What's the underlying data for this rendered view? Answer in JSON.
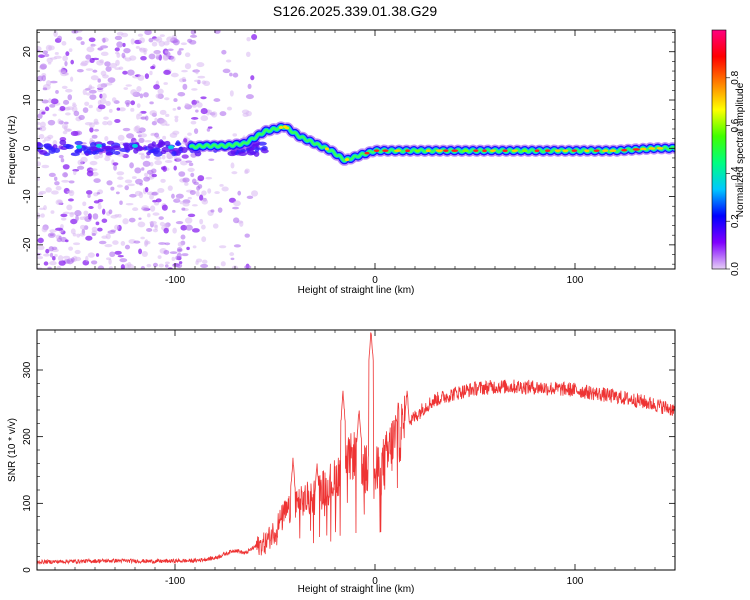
{
  "figure": {
    "title": "S126.2025.339.01.38.G29"
  },
  "chart_data": [
    {
      "type": "heatmap",
      "title": "S126.2025.339.01.38.G29",
      "xlabel": "Height of straight line (km)",
      "ylabel": "Frequency (Hz)",
      "xlim": [
        -169,
        150
      ],
      "ylim": [
        -25,
        24.5
      ],
      "x_ticks": [
        -100,
        0,
        100
      ],
      "x_tick_labels": [
        "-100",
        "0",
        "100"
      ],
      "y_ticks": [
        20,
        10,
        0,
        -10,
        -20
      ],
      "y_tick_labels": [
        "20",
        "10",
        "0",
        "-10",
        "-20"
      ],
      "colorbar": {
        "label": "Normalized spectral amplitude",
        "range": [
          0,
          1
        ],
        "ticks": [
          0.0,
          0.2,
          0.4,
          0.6,
          0.8
        ],
        "tick_labels": [
          "0.0",
          "0.2",
          "0.4",
          "0.6",
          "0.8"
        ],
        "colormap": [
          "#e6d0f5",
          "#8000ff",
          "#0000ff",
          "#00c8ff",
          "#00ff80",
          "#40ff00",
          "#ffff00",
          "#ff8000",
          "#ff0000",
          "#ff0080"
        ]
      },
      "ridge": {
        "description_points_x": [
          -169,
          -140,
          -120,
          -100,
          -85,
          -75,
          -65,
          -55,
          -45,
          -38,
          -30,
          -22,
          -15,
          -8,
          0,
          20,
          50,
          80,
          100,
          120,
          140,
          150
        ],
        "description_points_freq": [
          0,
          0,
          0.5,
          0,
          0.5,
          0.5,
          1,
          3.5,
          4.5,
          2.5,
          1,
          -0.5,
          -2.5,
          -1.5,
          -0.5,
          -0.5,
          -0.5,
          -0.5,
          -0.5,
          -0.5,
          0,
          0
        ]
      },
      "noise_region_x": [
        -169,
        -60
      ]
    },
    {
      "type": "line",
      "title": "",
      "xlabel": "Height of straight line (km)",
      "ylabel": "SNR (10 * v/v)",
      "xlim": [
        -169,
        150
      ],
      "ylim": [
        0,
        360
      ],
      "x_ticks": [
        -100,
        0,
        100
      ],
      "x_tick_labels": [
        "-100",
        "0",
        "100"
      ],
      "y_ticks": [
        0,
        100,
        200,
        300
      ],
      "y_tick_labels": [
        "0",
        "100",
        "200",
        "300"
      ],
      "line_color": "#ee3333",
      "series": [
        {
          "name": "SNR",
          "x": [
            -169,
            -150,
            -130,
            -110,
            -90,
            -80,
            -70,
            -65,
            -60,
            -55,
            -50,
            -45,
            -40,
            -35,
            -30,
            -25,
            -20,
            -15,
            -10,
            -5,
            0,
            5,
            10,
            15,
            20,
            25,
            30,
            40,
            50,
            60,
            70,
            80,
            90,
            100,
            110,
            120,
            130,
            140,
            150
          ],
          "values": [
            12,
            13,
            14,
            13,
            14,
            18,
            30,
            25,
            35,
            40,
            60,
            85,
            95,
            105,
            110,
            125,
            135,
            160,
            175,
            150,
            140,
            160,
            200,
            215,
            230,
            245,
            255,
            265,
            272,
            275,
            275,
            274,
            272,
            270,
            265,
            260,
            255,
            248,
            240
          ],
          "spikes": [
            {
              "x": -41,
              "y": 165
            },
            {
              "x": -29,
              "y": 160
            },
            {
              "x": -16,
              "y": 265
            },
            {
              "x": -8,
              "y": 240
            },
            {
              "x": -2,
              "y": 360
            },
            {
              "x": 16,
              "y": 270
            }
          ]
        }
      ]
    }
  ]
}
